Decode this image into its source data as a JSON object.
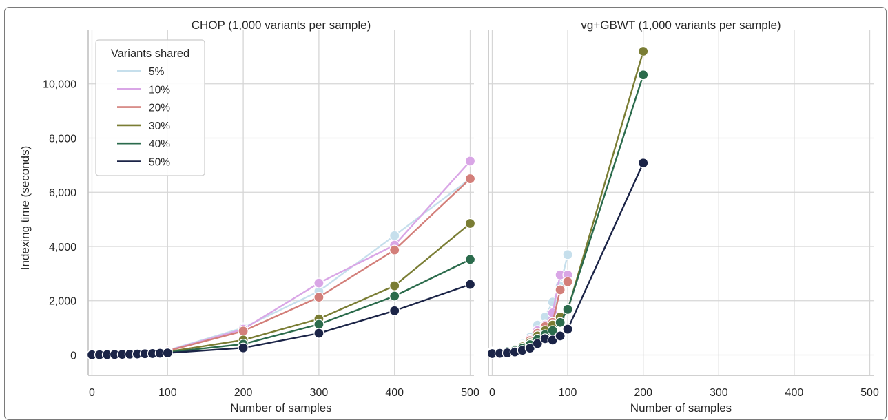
{
  "chart_data": [
    {
      "type": "line",
      "title": "CHOP (1,000 variants per sample)",
      "xlabel": "Number of samples",
      "ylabel": "Indexing time (seconds)",
      "xlim": [
        -5,
        505
      ],
      "ylim": [
        -750,
        12000
      ],
      "x_ticks": [
        0,
        100,
        200,
        300,
        400,
        500
      ],
      "x_tick_labels": [
        "0",
        "100",
        "200",
        "300",
        "400",
        "500"
      ],
      "y_ticks": [
        0,
        2000,
        4000,
        6000,
        8000,
        10000
      ],
      "y_tick_labels": [
        "0",
        "2,000",
        "4,000",
        "6,000",
        "8,000",
        "10,000"
      ],
      "grid": true,
      "legend": {
        "title": "Variants shared",
        "placement": "top-left",
        "entries": [
          "5%",
          "10%",
          "20%",
          "30%",
          "40%",
          "50%"
        ]
      },
      "series": [
        {
          "name": "5%",
          "color": "#c6dfec",
          "x": [
            0,
            10,
            20,
            30,
            40,
            50,
            60,
            70,
            80,
            90,
            100,
            200,
            300,
            400,
            500
          ],
          "y": [
            5,
            10,
            18,
            28,
            40,
            55,
            72,
            92,
            115,
            140,
            170,
            1000,
            2350,
            4400,
            6500
          ]
        },
        {
          "name": "10%",
          "color": "#d9a6e6",
          "x": [
            0,
            10,
            20,
            30,
            40,
            50,
            60,
            70,
            80,
            90,
            100,
            200,
            300,
            400,
            500
          ],
          "y": [
            5,
            10,
            18,
            27,
            38,
            52,
            68,
            86,
            108,
            132,
            160,
            950,
            2650,
            4050,
            7150
          ]
        },
        {
          "name": "20%",
          "color": "#d37f7a",
          "x": [
            0,
            10,
            20,
            30,
            40,
            50,
            60,
            70,
            80,
            90,
            100,
            200,
            300,
            400,
            500
          ],
          "y": [
            5,
            10,
            17,
            26,
            36,
            49,
            64,
            81,
            101,
            123,
            148,
            880,
            2130,
            3870,
            6500
          ]
        },
        {
          "name": "30%",
          "color": "#7a7d34",
          "x": [
            0,
            10,
            20,
            30,
            40,
            50,
            60,
            70,
            80,
            90,
            100,
            200,
            300,
            400,
            500
          ],
          "y": [
            5,
            9,
            15,
            22,
            30,
            40,
            52,
            65,
            80,
            97,
            115,
            550,
            1330,
            2550,
            4850
          ]
        },
        {
          "name": "40%",
          "color": "#2b6b4c",
          "x": [
            0,
            10,
            20,
            30,
            40,
            50,
            60,
            70,
            80,
            90,
            100,
            200,
            300,
            400,
            500
          ],
          "y": [
            5,
            9,
            14,
            20,
            27,
            35,
            45,
            56,
            68,
            82,
            97,
            400,
            1130,
            2170,
            3520
          ]
        },
        {
          "name": "50%",
          "color": "#1b2447",
          "x": [
            0,
            10,
            20,
            30,
            40,
            50,
            60,
            70,
            80,
            90,
            100,
            200,
            300,
            400,
            500
          ],
          "y": [
            5,
            8,
            12,
            17,
            22,
            28,
            35,
            43,
            52,
            62,
            73,
            260,
            800,
            1630,
            2600
          ]
        }
      ]
    },
    {
      "type": "line",
      "title": "vg+GBWT (1,000 variants per sample)",
      "xlabel": "Number of samples",
      "ylabel": "",
      "xlim": [
        -5,
        505
      ],
      "ylim": [
        -750,
        12000
      ],
      "x_ticks": [
        0,
        100,
        200,
        300,
        400,
        500
      ],
      "x_tick_labels": [
        "0",
        "100",
        "200",
        "300",
        "400",
        "500"
      ],
      "grid": true,
      "series": [
        {
          "name": "5%",
          "color": "#c6dfec",
          "x": [
            0,
            10,
            20,
            30,
            40,
            50,
            60,
            70,
            80,
            90,
            100
          ],
          "y": [
            110,
            130,
            170,
            250,
            400,
            650,
            1100,
            1400,
            1950,
            2550,
            3700
          ]
        },
        {
          "name": "10%",
          "color": "#d9a6e6",
          "x": [
            0,
            10,
            20,
            30,
            40,
            50,
            60,
            70,
            80,
            90,
            100
          ],
          "y": [
            100,
            120,
            160,
            230,
            360,
            580,
            900,
            1100,
            1550,
            2950,
            2950
          ]
        },
        {
          "name": "20%",
          "color": "#d37f7a",
          "x": [
            0,
            10,
            20,
            30,
            40,
            50,
            60,
            70,
            80,
            90,
            100
          ],
          "y": [
            90,
            110,
            150,
            210,
            330,
            530,
            800,
            1050,
            1200,
            2400,
            2700
          ]
        },
        {
          "name": "30%",
          "color": "#7a7d34",
          "x": [
            0,
            10,
            20,
            30,
            40,
            50,
            60,
            70,
            80,
            90,
            100,
            200
          ],
          "y": [
            80,
            100,
            130,
            190,
            300,
            450,
            700,
            900,
            1100,
            1400,
            1650,
            11200
          ]
        },
        {
          "name": "40%",
          "color": "#2b6b4c",
          "x": [
            0,
            10,
            20,
            30,
            40,
            50,
            60,
            70,
            80,
            90,
            100,
            200
          ],
          "y": [
            70,
            90,
            115,
            160,
            250,
            380,
            580,
            750,
            900,
            1200,
            1680,
            10330
          ]
        },
        {
          "name": "50%",
          "color": "#1b2447",
          "x": [
            0,
            10,
            20,
            30,
            40,
            50,
            60,
            70,
            80,
            90,
            100,
            200
          ],
          "y": [
            50,
            60,
            75,
            110,
            170,
            250,
            420,
            600,
            550,
            700,
            950,
            7080
          ]
        }
      ]
    }
  ]
}
